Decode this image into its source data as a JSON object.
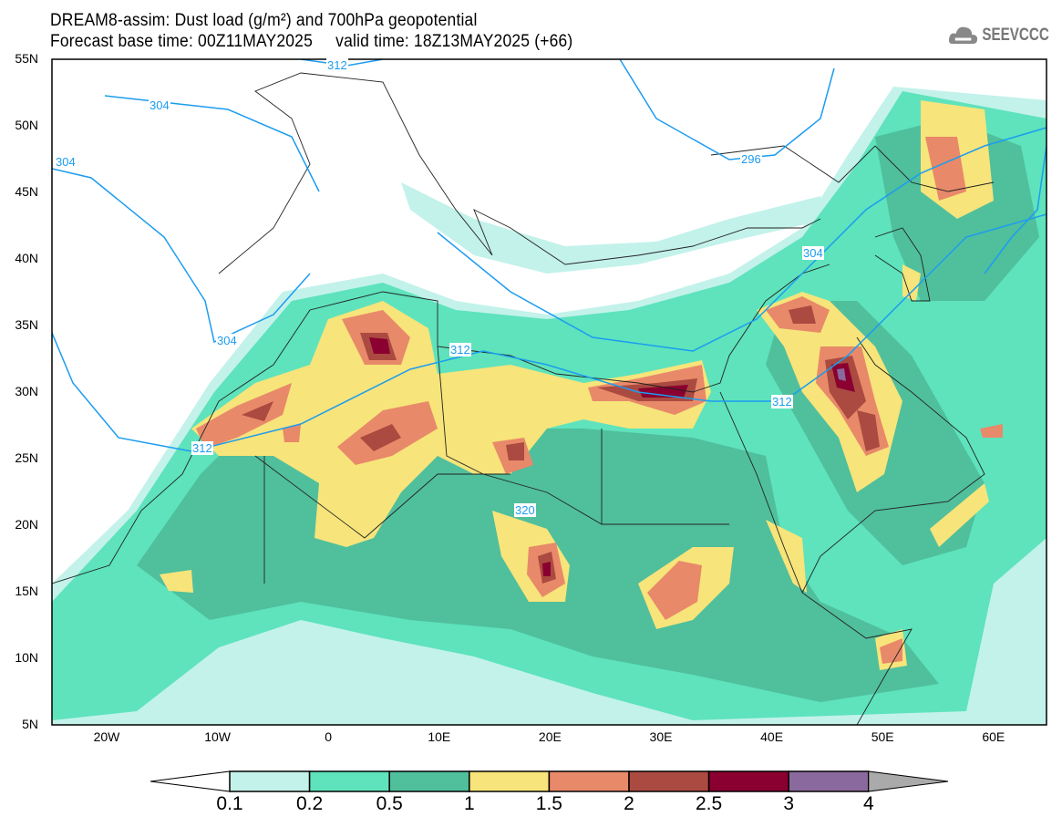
{
  "header": {
    "title": "DREAM8-assim: Dust load (g/m²) and 700hPa geopotential",
    "subtitle": "Forecast base time: 00Z11MAY2025     valid time: 18Z13MAY2025 (+66)",
    "logo_text": "SEEVCCC"
  },
  "map": {
    "lon_range": [
      -25,
      65
    ],
    "lat_range": [
      5,
      55
    ],
    "lat_labels": [
      "55N",
      "50N",
      "45N",
      "40N",
      "35N",
      "30N",
      "25N",
      "20N",
      "15N",
      "10N",
      "5N"
    ],
    "lon_labels": [
      "20W",
      "10W",
      "0",
      "10E",
      "20E",
      "30E",
      "40E",
      "50E",
      "60E"
    ],
    "contour_labels": [
      "312",
      "304",
      "304",
      "304",
      "296",
      "312",
      "304",
      "312",
      "312",
      "320"
    ]
  },
  "colorbar": {
    "levels": [
      "0.1",
      "0.2",
      "0.5",
      "1",
      "1.5",
      "2",
      "2.5",
      "3",
      "4"
    ],
    "colors": [
      "#c3f2ea",
      "#5ee3bc",
      "#50bf9c",
      "#f7e47a",
      "#e8896a",
      "#aa4a40",
      "#8a0030",
      "#8a6a9e"
    ],
    "under_color": "#ffffff",
    "over_color": "#aaaaaa"
  }
}
